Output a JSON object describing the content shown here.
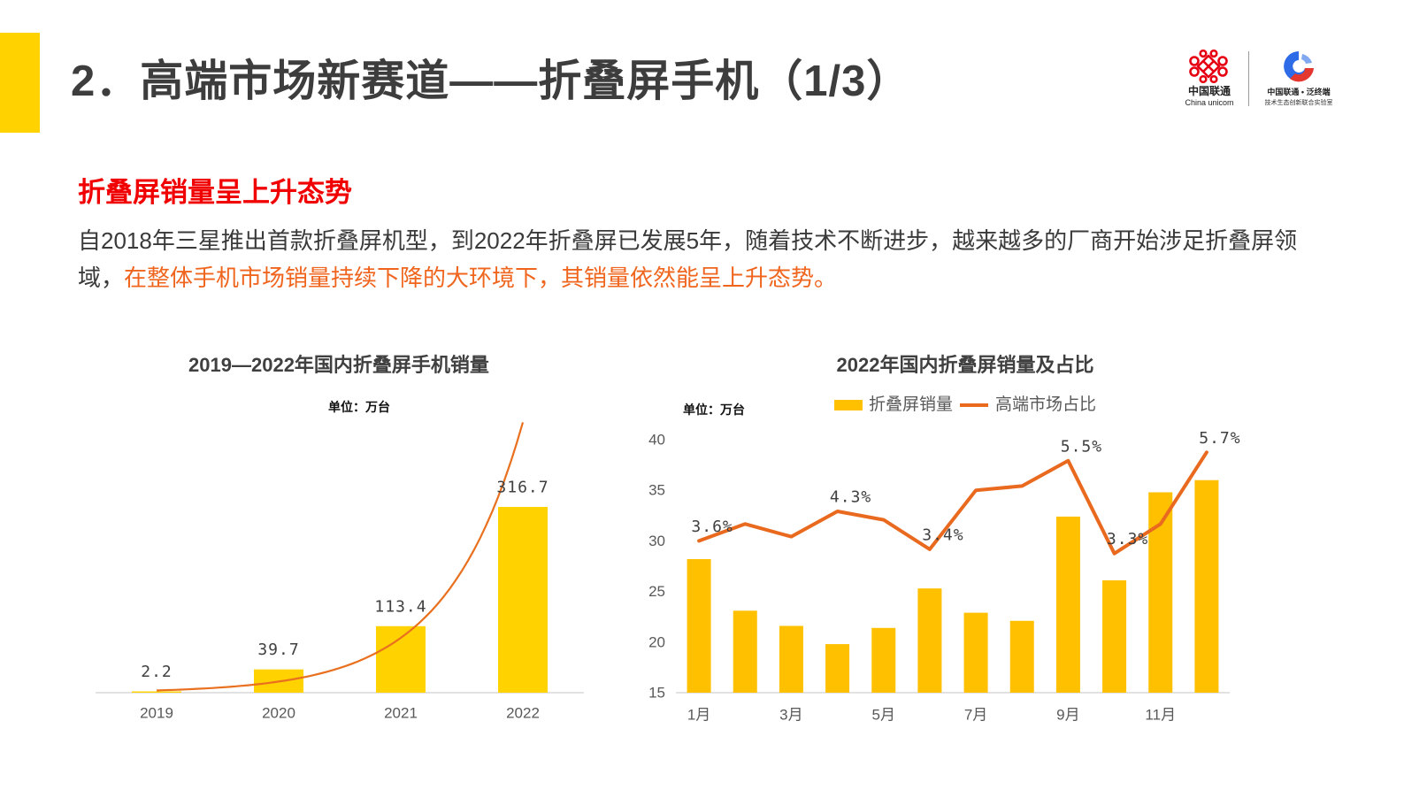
{
  "slide": {
    "title": "2．高端市场新赛道——折叠屏手机（1/3）",
    "subtitle": "折叠屏销量呈上升态势",
    "body_text": "自2018年三星推出首款折叠屏机型，到2022年折叠屏已发展5年，随着技术不断进步，越来越多的厂商开始涉足折叠屏领域，",
    "body_highlight": "在整体手机市场销量持续下降的大环境下，其销量依然能呈上升态势。",
    "colors": {
      "accent_bar": "#FFD200",
      "title": "#3D3D3D",
      "subtitle": "#F00000",
      "body": "#3A3A3A",
      "highlight": "#F0651E"
    }
  },
  "logos": {
    "unicom_name_cn": "中国联通",
    "unicom_name_en": "China unicom",
    "lab_line1": "中国联通 • 泛终端",
    "lab_line2": "技术生态创新联合实验室",
    "icons": [
      "china-unicom-knot-icon",
      "lab-circle-icon"
    ],
    "colors": {
      "unicom_red": "#E60012",
      "lab_blue": "#2E6BE6",
      "lab_red": "#E4382E"
    }
  },
  "chart_data": [
    {
      "type": "bar",
      "title": "2019—2022年国内折叠屏手机销量",
      "unit_note": "单位：万台",
      "categories": [
        "2019",
        "2020",
        "2021",
        "2022"
      ],
      "values": [
        2.2,
        39.7,
        113.4,
        316.7
      ],
      "show_data_labels": true,
      "trendline": "exponential",
      "ylim": [
        0,
        500
      ],
      "y_axis_visible": false,
      "grid": false,
      "legend": "none",
      "colors": {
        "bar": "#FFD200",
        "trendline": "#E9701F",
        "axis": "#D9D9D9"
      }
    },
    {
      "type": "bar+line",
      "title": "2022年国内折叠屏销量及占比",
      "unit_note": "单位：万台",
      "x": [
        1,
        2,
        3,
        4,
        5,
        6,
        7,
        8,
        9,
        10,
        11,
        12
      ],
      "xticks": [
        1,
        3,
        5,
        7,
        9,
        11
      ],
      "xtick_labels": [
        "1月",
        "3月",
        "5月",
        "7月",
        "9月",
        "11月"
      ],
      "ylim": [
        15,
        40
      ],
      "yticks": [
        15,
        20,
        25,
        30,
        35,
        40
      ],
      "y2lim": [
        0,
        6
      ],
      "y2_axis_visible": false,
      "grid": false,
      "legend": "top",
      "axis_color": "#D9D9D9",
      "series": [
        {
          "name": "折叠屏销量",
          "type": "bar",
          "axis": "primary",
          "values": [
            28.2,
            23.1,
            21.6,
            19.8,
            21.4,
            25.3,
            22.9,
            22.1,
            32.4,
            26.1,
            34.8,
            36.0
          ],
          "color": "#FFC000"
        },
        {
          "name": "高端市场占比",
          "type": "line",
          "axis": "secondary",
          "unit": "%",
          "values": [
            3.6,
            4.0,
            3.7,
            4.3,
            4.1,
            3.4,
            4.8,
            4.9,
            5.5,
            3.3,
            4.0,
            5.7
          ],
          "labeled_x": [
            1,
            4,
            6,
            9,
            10,
            12
          ],
          "color": "#E96A1E"
        }
      ]
    }
  ]
}
